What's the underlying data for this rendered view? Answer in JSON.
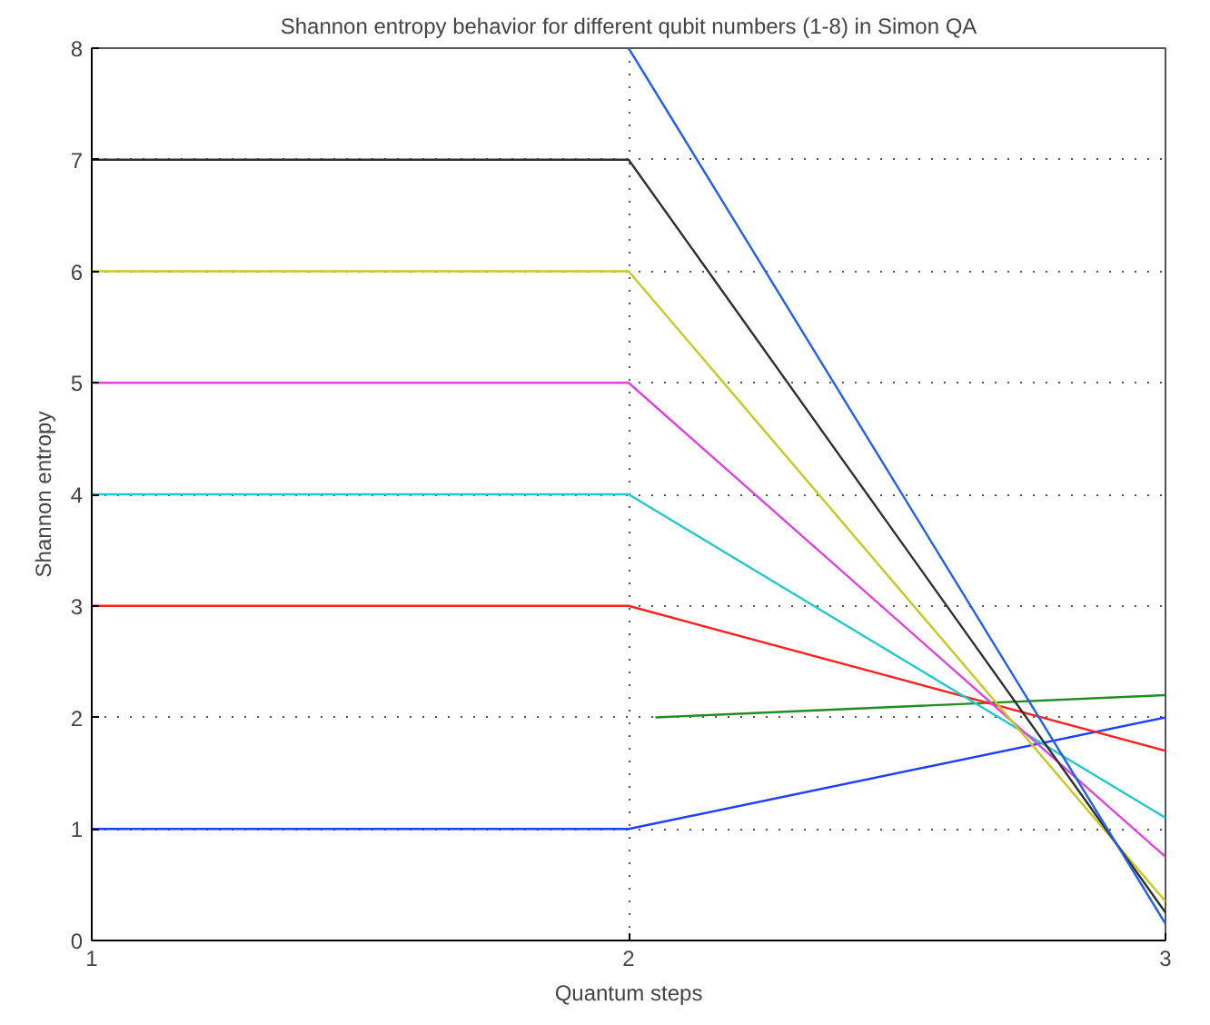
{
  "chart_data": {
    "type": "line",
    "title": "Shannon entropy behavior for different qubit numbers (1-8) in Simon QA",
    "xlabel": "Quantum steps",
    "ylabel": "Shannon entropy",
    "x": [
      1,
      2,
      3
    ],
    "xlim": [
      1,
      3
    ],
    "xticks": [
      1,
      2,
      3
    ],
    "ylim": [
      0,
      8
    ],
    "yticks": [
      0,
      1,
      2,
      3,
      4,
      5,
      6,
      7,
      8
    ],
    "grid": true,
    "series": [
      {
        "color": "#1f3fff",
        "values": [
          1,
          1,
          2.0
        ]
      },
      {
        "color": "#228b22",
        "x": [
          2.05,
          3
        ],
        "values": [
          2.0,
          2.2
        ]
      },
      {
        "color": "#ff2020",
        "values": [
          3,
          3,
          1.7
        ]
      },
      {
        "color": "#20c8d0",
        "values": [
          4,
          4,
          1.1
        ]
      },
      {
        "color": "#e040e0",
        "values": [
          5,
          5,
          0.75
        ]
      },
      {
        "color": "#c8c820",
        "values": [
          6,
          6,
          0.35
        ]
      },
      {
        "color": "#303030",
        "values": [
          7,
          7,
          0.25
        ]
      },
      {
        "color": "#2060f0",
        "x": [
          2,
          3
        ],
        "values": [
          8,
          0.15
        ]
      }
    ]
  }
}
